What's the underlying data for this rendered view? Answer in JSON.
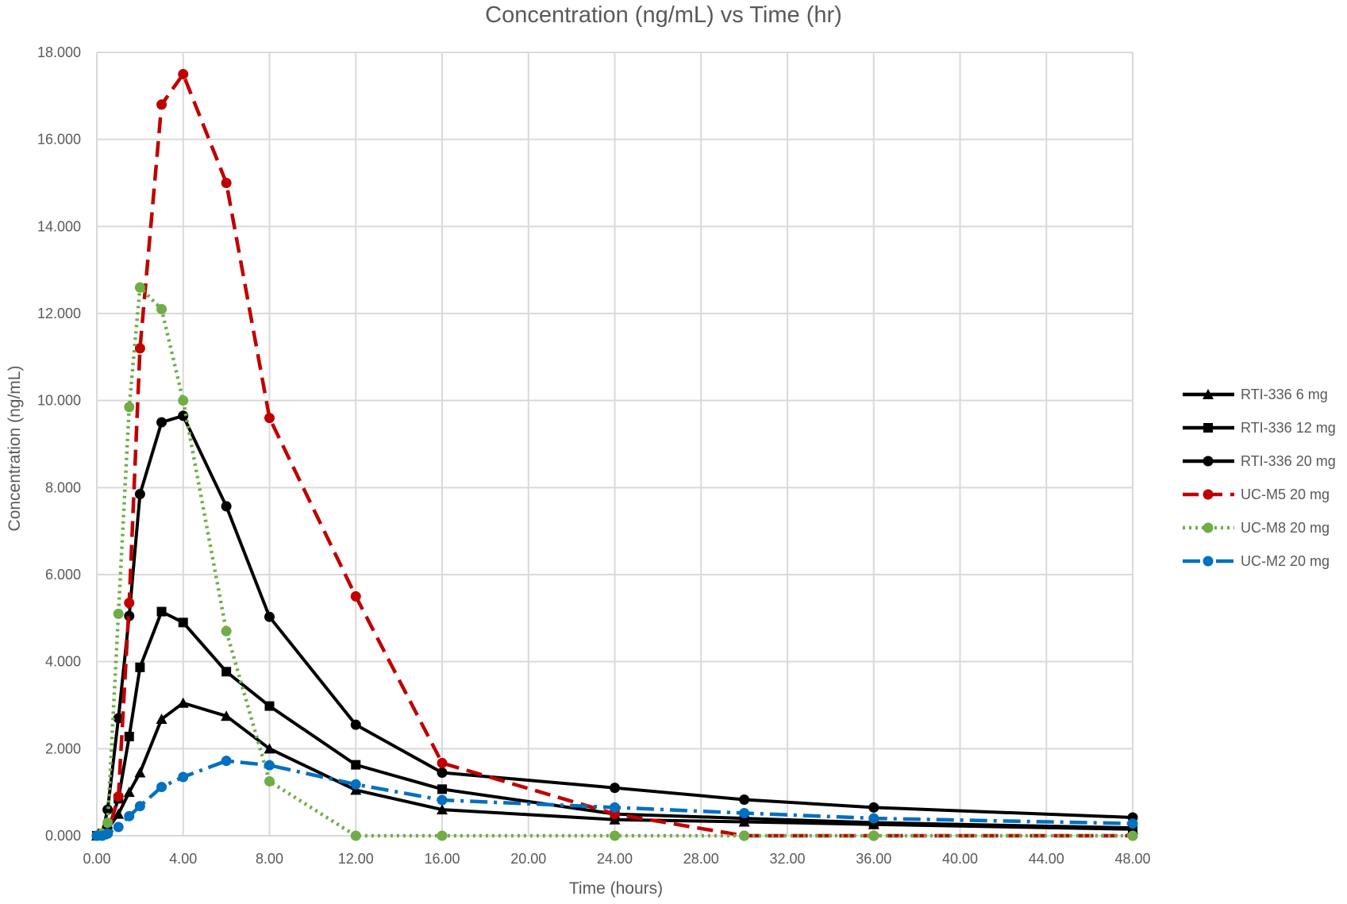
{
  "chart_data": {
    "type": "line",
    "title": "Concentration (ng/mL) vs Time (hr)",
    "xlabel": "Time (hours)",
    "ylabel": "Concentration (ng/mL)",
    "xlim": [
      0,
      48
    ],
    "ylim": [
      0,
      18
    ],
    "x_ticks": [
      "0.00",
      "4.00",
      "8.00",
      "12.00",
      "16.00",
      "20.00",
      "24.00",
      "28.00",
      "32.00",
      "36.00",
      "40.00",
      "44.00",
      "48.00"
    ],
    "y_ticks": [
      "0.000",
      "2.000",
      "4.000",
      "6.000",
      "8.000",
      "10.000",
      "12.000",
      "14.000",
      "16.000",
      "18.000"
    ],
    "grid": true,
    "legend_position": "right",
    "series": [
      {
        "name": "RTI-336 6 mg",
        "color": "#000000",
        "line_style": "solid",
        "marker": "triangle",
        "x": [
          0,
          0.25,
          0.5,
          1,
          1.5,
          2,
          3,
          4,
          6,
          8,
          12,
          16,
          24,
          30,
          36,
          48
        ],
        "y": [
          0,
          0.03,
          0.15,
          0.5,
          1.0,
          1.45,
          2.68,
          3.05,
          2.75,
          2.0,
          1.05,
          0.6,
          0.37,
          0.32,
          0.26,
          0.15
        ]
      },
      {
        "name": "RTI-336 12 mg",
        "color": "#000000",
        "line_style": "solid",
        "marker": "square",
        "x": [
          0,
          0.25,
          0.5,
          1,
          1.5,
          2,
          3,
          4,
          6,
          8,
          12,
          16,
          24,
          30,
          36,
          48
        ],
        "y": [
          0,
          0.05,
          0.1,
          0.85,
          2.28,
          3.87,
          5.15,
          4.9,
          3.77,
          2.98,
          1.63,
          1.07,
          0.5,
          0.4,
          0.3,
          0.18
        ]
      },
      {
        "name": "RTI-336 20 mg",
        "color": "#000000",
        "line_style": "solid",
        "marker": "circle",
        "x": [
          0,
          0.25,
          0.5,
          1,
          1.5,
          2,
          3,
          4,
          6,
          8,
          12,
          16,
          24,
          30,
          36,
          48
        ],
        "y": [
          0,
          0.05,
          0.6,
          2.7,
          5.05,
          7.85,
          9.5,
          9.65,
          7.57,
          5.03,
          2.55,
          1.45,
          1.1,
          0.83,
          0.65,
          0.42
        ]
      },
      {
        "name": "UC-M5 20 mg",
        "color": "#c00000",
        "line_style": "dashed",
        "marker": "circle",
        "x": [
          0,
          0.25,
          0.5,
          1,
          1.5,
          2,
          3,
          4,
          6,
          8,
          12,
          16,
          24,
          30,
          36,
          48
        ],
        "y": [
          0,
          0.02,
          0.05,
          0.9,
          5.35,
          11.2,
          16.8,
          17.5,
          15.0,
          9.6,
          5.5,
          1.67,
          0.5,
          0.0,
          0.0,
          0.0
        ]
      },
      {
        "name": "UC-M8 20 mg",
        "color": "#70ad47",
        "line_style": "dotted",
        "marker": "circle",
        "x": [
          0,
          0.25,
          0.5,
          1,
          1.5,
          2,
          3,
          4,
          6,
          8,
          12,
          16,
          24,
          30,
          36,
          48
        ],
        "y": [
          0,
          0.05,
          0.3,
          5.1,
          9.85,
          12.6,
          12.1,
          10.0,
          4.7,
          1.25,
          0.0,
          0.0,
          0.0,
          0.0,
          0.0,
          0.0
        ]
      },
      {
        "name": "UC-M2 20 mg",
        "color": "#0070c0",
        "line_style": "dashdot",
        "marker": "circle",
        "x": [
          0,
          0.25,
          0.5,
          1,
          1.5,
          2,
          3,
          4,
          6,
          8,
          12,
          16,
          24,
          30,
          36,
          48
        ],
        "y": [
          0,
          0.0,
          0.05,
          0.2,
          0.45,
          0.68,
          1.12,
          1.35,
          1.72,
          1.62,
          1.18,
          0.82,
          0.65,
          0.52,
          0.4,
          0.28
        ]
      }
    ]
  }
}
